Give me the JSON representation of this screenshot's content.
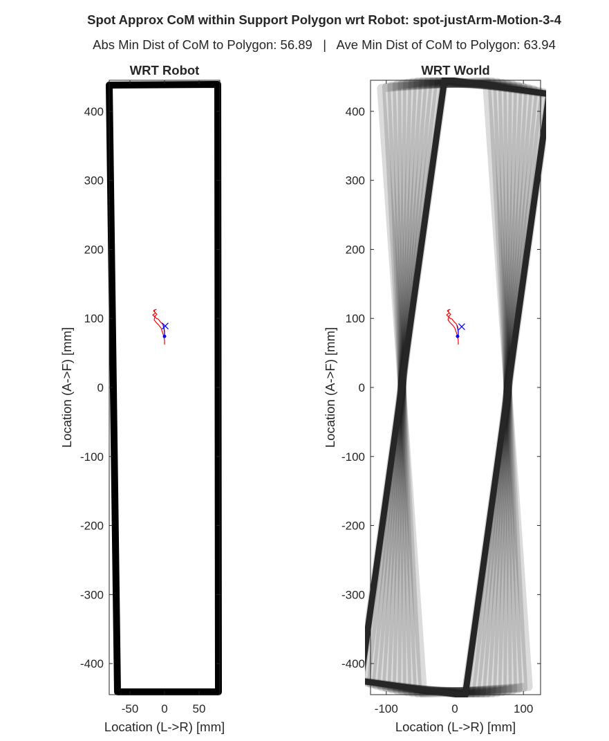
{
  "figure": {
    "title": "Spot Approx CoM within Support Polygon wrt Robot: spot-justArm-Motion-3-4",
    "subtitle": "Abs Min Dist of CoM to Polygon: 56.89   |   Ave Min Dist of CoM to Polygon: 63.94",
    "text_color": "#262626",
    "com_path_color": "#ff0000",
    "marker_color": "#0000ff"
  },
  "chart_data": [
    {
      "type": "line",
      "title": "WRT Robot",
      "xlabel": "Location (L->R) [mm]",
      "ylabel": "Location (A->F) [mm]",
      "xlim": [
        -80,
        80
      ],
      "ylim": [
        -445,
        445
      ],
      "xticks": [
        -50,
        0,
        50
      ],
      "yticks": [
        -400,
        -300,
        -200,
        -100,
        0,
        100,
        200,
        300,
        400
      ],
      "grid": false,
      "series": [
        {
          "role": "support-polygon",
          "color": "#000000",
          "x": [
            -80,
            77,
            78,
            -68,
            -80
          ],
          "y": [
            438,
            439,
            -441,
            -441,
            438
          ]
        },
        {
          "role": "com-path",
          "color": "#ff0000",
          "x": [
            0,
            0,
            -1,
            -3,
            -5,
            -8,
            -12,
            -15,
            -14,
            -17,
            -13,
            -16,
            -12,
            -15,
            -14,
            -11,
            -14,
            -12,
            -9,
            -6,
            -3,
            -1,
            0,
            0
          ],
          "y": [
            62,
            68,
            74,
            80,
            86,
            90,
            94,
            98,
            102,
            105,
            108,
            111,
            113,
            112,
            109,
            106,
            103,
            100,
            99,
            95,
            92,
            88,
            82,
            76
          ]
        },
        {
          "role": "com-path-blue",
          "color": "#0000ff",
          "x": [
            0,
            0,
            -1,
            -2
          ],
          "y": [
            74,
            80,
            86,
            90
          ]
        },
        {
          "role": "start-marker",
          "marker": "x",
          "color": "#0000ff",
          "x": [
            1
          ],
          "y": [
            89
          ]
        },
        {
          "role": "end-marker",
          "marker": "dot",
          "color": "#0000ff",
          "x": [
            0
          ],
          "y": [
            74
          ]
        }
      ]
    },
    {
      "type": "line",
      "title": "WRT World",
      "xlabel": "Location (L->R) [mm]",
      "ylabel": "Location (A->F) [mm]",
      "xlim": [
        -123,
        125
      ],
      "ylim": [
        -445,
        445
      ],
      "xticks": [
        -100,
        0,
        100
      ],
      "yticks": [
        -400,
        -300,
        -200,
        -100,
        0,
        100,
        200,
        300,
        400
      ],
      "grid": false,
      "polygon_trail": {
        "angles_deg": [
          -4.0,
          -3.0,
          -2.0,
          -1.0,
          0.0,
          1.0,
          2.0,
          3.0,
          4.0,
          5.0,
          6.0,
          7.0,
          8.0
        ],
        "base_polygon": {
          "x": [
            -77,
            77,
            77,
            -77,
            -77
          ],
          "y": [
            440,
            440,
            -440,
            -440,
            440
          ]
        },
        "final_angle_deg": 8.0,
        "trail_color": "#000000",
        "final_color": "#262626"
      },
      "series": [
        {
          "role": "com-path",
          "color": "#ff0000",
          "x": [
            5,
            5,
            4,
            2,
            0,
            -3,
            -7,
            -10,
            -9,
            -12,
            -8,
            -11,
            -7,
            -10,
            -9,
            -6,
            -9,
            -7,
            -4,
            -1,
            2,
            4,
            5,
            5
          ],
          "y": [
            62,
            68,
            74,
            80,
            86,
            90,
            94,
            98,
            102,
            105,
            108,
            111,
            113,
            112,
            109,
            106,
            103,
            100,
            99,
            95,
            92,
            88,
            82,
            76
          ]
        },
        {
          "role": "com-path-blue",
          "color": "#0000ff",
          "x": [
            5,
            5,
            4,
            3
          ],
          "y": [
            74,
            80,
            86,
            90
          ]
        },
        {
          "role": "start-marker",
          "marker": "x",
          "color": "#0000ff",
          "x": [
            10
          ],
          "y": [
            88
          ]
        },
        {
          "role": "end-marker",
          "marker": "dot",
          "color": "#0000ff",
          "x": [
            4
          ],
          "y": [
            74
          ]
        }
      ]
    }
  ]
}
